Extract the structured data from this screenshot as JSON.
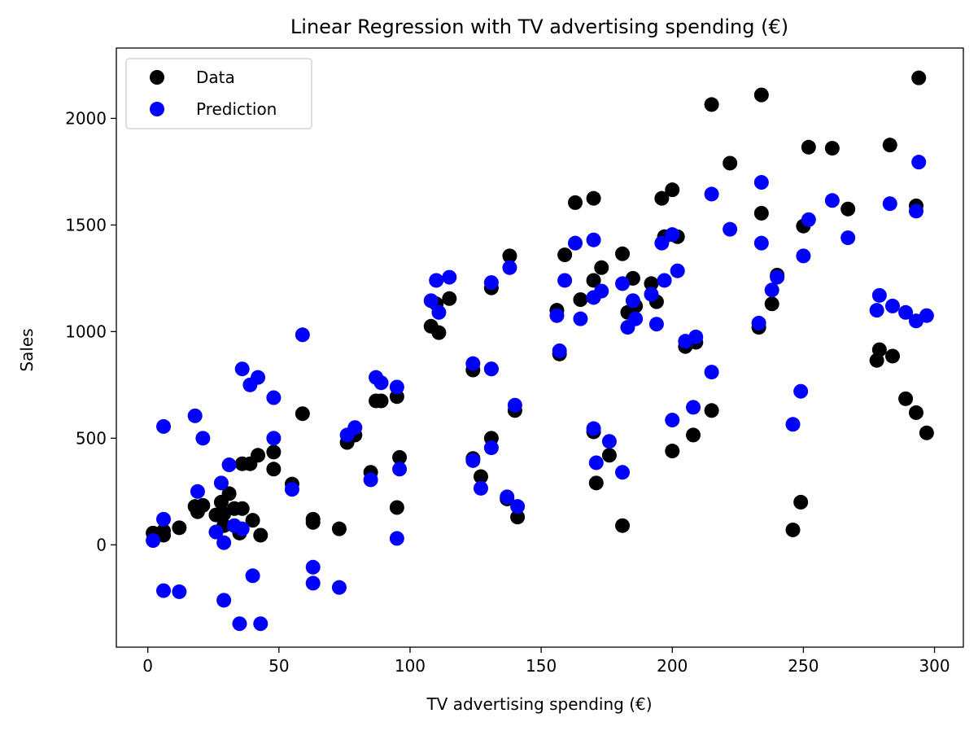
{
  "chart_data": {
    "type": "scatter",
    "title": "Linear Regression with TV advertising spending (€)",
    "xlabel": "TV advertising spending (€)",
    "ylabel": "Sales",
    "xlim": [
      -12,
      311
    ],
    "ylim": [
      -480,
      2330
    ],
    "xticks": [
      0,
      50,
      100,
      150,
      200,
      250,
      300
    ],
    "yticks": [
      0,
      500,
      1000,
      1500,
      2000
    ],
    "legend_position": "top-left",
    "colors": {
      "data": "#000000",
      "prediction": "#0000ff"
    },
    "series": [
      {
        "name": "Data",
        "color": "#000000",
        "points": [
          [
            2,
            55
          ],
          [
            6,
            45
          ],
          [
            6,
            65
          ],
          [
            12,
            80
          ],
          [
            18,
            180
          ],
          [
            19,
            155
          ],
          [
            21,
            185
          ],
          [
            26,
            140
          ],
          [
            28,
            200
          ],
          [
            29,
            90
          ],
          [
            29,
            145
          ],
          [
            31,
            240
          ],
          [
            33,
            170
          ],
          [
            35,
            55
          ],
          [
            36,
            170
          ],
          [
            36,
            380
          ],
          [
            39,
            380
          ],
          [
            40,
            115
          ],
          [
            42,
            420
          ],
          [
            43,
            45
          ],
          [
            48,
            355
          ],
          [
            48,
            435
          ],
          [
            55,
            285
          ],
          [
            59,
            615
          ],
          [
            63,
            120
          ],
          [
            63,
            105
          ],
          [
            73,
            75
          ],
          [
            76,
            480
          ],
          [
            79,
            515
          ],
          [
            85,
            340
          ],
          [
            87,
            675
          ],
          [
            89,
            675
          ],
          [
            95,
            695
          ],
          [
            95,
            175
          ],
          [
            96,
            410
          ],
          [
            108,
            1025
          ],
          [
            110,
            1130
          ],
          [
            111,
            995
          ],
          [
            115,
            1155
          ],
          [
            124,
            820
          ],
          [
            124,
            405
          ],
          [
            127,
            320
          ],
          [
            131,
            1205
          ],
          [
            131,
            500
          ],
          [
            131,
            825
          ],
          [
            137,
            215
          ],
          [
            138,
            1355
          ],
          [
            140,
            630
          ],
          [
            141,
            130
          ],
          [
            156,
            1100
          ],
          [
            157,
            895
          ],
          [
            159,
            1360
          ],
          [
            163,
            1605
          ],
          [
            165,
            1150
          ],
          [
            170,
            1625
          ],
          [
            170,
            1240
          ],
          [
            170,
            530
          ],
          [
            171,
            290
          ],
          [
            173,
            1300
          ],
          [
            176,
            420
          ],
          [
            181,
            1365
          ],
          [
            181,
            90
          ],
          [
            183,
            1090
          ],
          [
            185,
            1250
          ],
          [
            186,
            1120
          ],
          [
            192,
            1225
          ],
          [
            194,
            1140
          ],
          [
            196,
            1625
          ],
          [
            197,
            1445
          ],
          [
            200,
            1665
          ],
          [
            200,
            440
          ],
          [
            202,
            1445
          ],
          [
            205,
            930
          ],
          [
            208,
            515
          ],
          [
            209,
            950
          ],
          [
            215,
            630
          ],
          [
            215,
            2065
          ],
          [
            222,
            1790
          ],
          [
            233,
            1020
          ],
          [
            234,
            2110
          ],
          [
            234,
            1555
          ],
          [
            238,
            1130
          ],
          [
            240,
            1265
          ],
          [
            246,
            70
          ],
          [
            249,
            200
          ],
          [
            250,
            1495
          ],
          [
            252,
            1865
          ],
          [
            261,
            1860
          ],
          [
            267,
            1575
          ],
          [
            278,
            865
          ],
          [
            279,
            915
          ],
          [
            283,
            1875
          ],
          [
            284,
            885
          ],
          [
            289,
            685
          ],
          [
            293,
            1590
          ],
          [
            293,
            620
          ],
          [
            294,
            2190
          ],
          [
            297,
            525
          ]
        ]
      },
      {
        "name": "Prediction",
        "color": "#0000ff",
        "points": [
          [
            2,
            20
          ],
          [
            6,
            120
          ],
          [
            6,
            555
          ],
          [
            6,
            -215
          ],
          [
            12,
            -220
          ],
          [
            18,
            605
          ],
          [
            19,
            250
          ],
          [
            21,
            500
          ],
          [
            26,
            60
          ],
          [
            28,
            290
          ],
          [
            29,
            10
          ],
          [
            29,
            -260
          ],
          [
            31,
            375
          ],
          [
            33,
            90
          ],
          [
            35,
            -370
          ],
          [
            36,
            75
          ],
          [
            36,
            825
          ],
          [
            39,
            750
          ],
          [
            40,
            -145
          ],
          [
            42,
            785
          ],
          [
            43,
            -370
          ],
          [
            48,
            500
          ],
          [
            48,
            690
          ],
          [
            55,
            260
          ],
          [
            59,
            985
          ],
          [
            63,
            -105
          ],
          [
            63,
            -180
          ],
          [
            73,
            -200
          ],
          [
            76,
            515
          ],
          [
            79,
            550
          ],
          [
            85,
            305
          ],
          [
            87,
            785
          ],
          [
            89,
            760
          ],
          [
            95,
            740
          ],
          [
            95,
            30
          ],
          [
            96,
            355
          ],
          [
            108,
            1145
          ],
          [
            110,
            1240
          ],
          [
            111,
            1090
          ],
          [
            115,
            1255
          ],
          [
            124,
            850
          ],
          [
            124,
            395
          ],
          [
            127,
            265
          ],
          [
            131,
            1230
          ],
          [
            131,
            455
          ],
          [
            131,
            825
          ],
          [
            137,
            225
          ],
          [
            138,
            1300
          ],
          [
            140,
            655
          ],
          [
            141,
            180
          ],
          [
            156,
            1075
          ],
          [
            157,
            910
          ],
          [
            159,
            1240
          ],
          [
            163,
            1415
          ],
          [
            165,
            1060
          ],
          [
            170,
            1430
          ],
          [
            170,
            1160
          ],
          [
            170,
            545
          ],
          [
            171,
            385
          ],
          [
            173,
            1190
          ],
          [
            176,
            485
          ],
          [
            181,
            1225
          ],
          [
            181,
            340
          ],
          [
            183,
            1020
          ],
          [
            185,
            1145
          ],
          [
            186,
            1060
          ],
          [
            192,
            1175
          ],
          [
            194,
            1035
          ],
          [
            196,
            1415
          ],
          [
            197,
            1240
          ],
          [
            200,
            1455
          ],
          [
            200,
            585
          ],
          [
            202,
            1285
          ],
          [
            205,
            955
          ],
          [
            208,
            645
          ],
          [
            209,
            975
          ],
          [
            215,
            810
          ],
          [
            215,
            1645
          ],
          [
            222,
            1480
          ],
          [
            233,
            1040
          ],
          [
            234,
            1700
          ],
          [
            234,
            1415
          ],
          [
            238,
            1195
          ],
          [
            240,
            1255
          ],
          [
            246,
            565
          ],
          [
            249,
            720
          ],
          [
            250,
            1355
          ],
          [
            252,
            1525
          ],
          [
            261,
            1615
          ],
          [
            267,
            1440
          ],
          [
            278,
            1100
          ],
          [
            279,
            1170
          ],
          [
            283,
            1600
          ],
          [
            284,
            1120
          ],
          [
            289,
            1090
          ],
          [
            293,
            1565
          ],
          [
            293,
            1050
          ],
          [
            294,
            1795
          ],
          [
            297,
            1075
          ]
        ]
      }
    ]
  }
}
